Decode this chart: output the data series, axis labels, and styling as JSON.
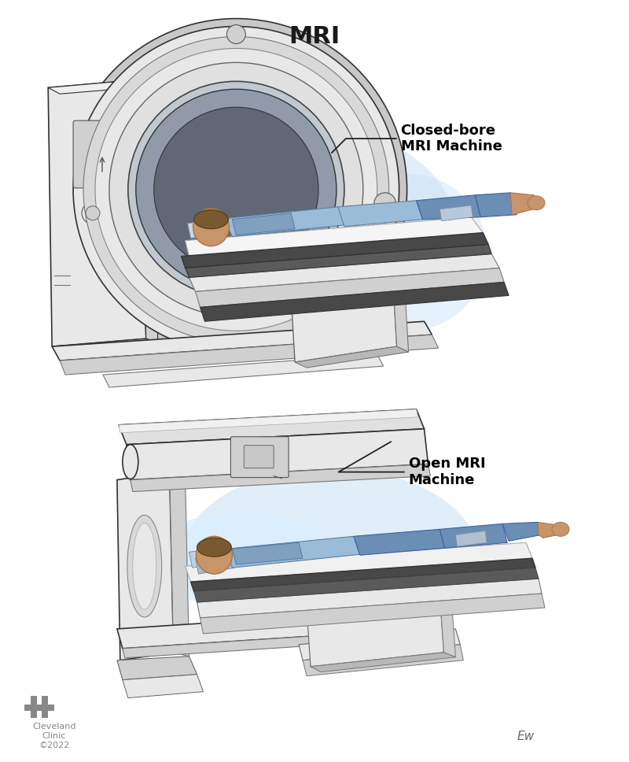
{
  "title": "MRI",
  "title_fontsize": 22,
  "title_fontweight": "bold",
  "background_color": "#ffffff",
  "label1_text": "Closed-bore\nMRI Machine",
  "label2_text": "Open MRI\nMachine",
  "label_fontsize": 13,
  "label_fontweight": "bold",
  "machine_color_light": "#e8e8e8",
  "machine_color_mid": "#d0d0d0",
  "machine_color_dark": "#b8b8b8",
  "machine_color_darker": "#909090",
  "machine_color_shadow": "#606060",
  "machine_color_glow": "#cce4f8",
  "table_color_dark": "#484848",
  "patient_blue_dark": "#6b8eb5",
  "patient_blue_light": "#9bbcd8",
  "patient_skin": "#c8956a",
  "patient_skin_dark": "#a8754a",
  "patient_gray": "#8a9aaa",
  "cleveland_color": "#888888",
  "cleveland_text": "Cleveland\nClinic\n©2022"
}
